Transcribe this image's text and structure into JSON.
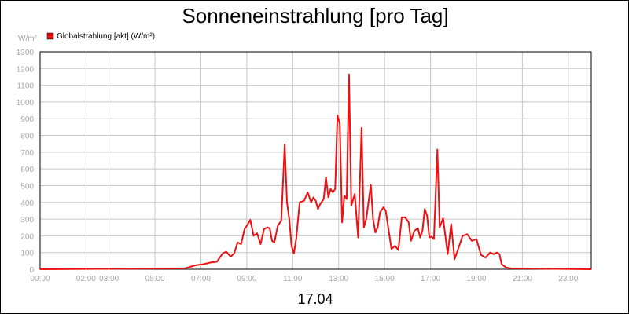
{
  "chart_data": {
    "type": "line",
    "title": "Sonneneinstrahlung [pro Tag]",
    "y_unit": "W/m²",
    "xlabel": "17.04",
    "legend": {
      "position": "top-left",
      "entries": [
        {
          "name": "Globalstrahlung [akt] (W/m²)",
          "color": "#ee1111"
        }
      ]
    },
    "grid": true,
    "ylim": [
      0,
      1300
    ],
    "y_ticks": [
      0,
      100,
      200,
      300,
      400,
      500,
      600,
      700,
      800,
      900,
      1000,
      1100,
      1200,
      1300
    ],
    "xlim": [
      0,
      24
    ],
    "x_tick_positions": [
      0,
      2,
      3,
      5,
      7,
      9,
      11,
      13,
      15,
      17,
      19,
      21,
      23
    ],
    "x_tick_labels": [
      "00:00",
      "02:00",
      "03:00",
      "05:00",
      "07:00",
      "09:00",
      "11:00",
      "13:00",
      "15:00",
      "17:00",
      "19:00",
      "21:00",
      "23:00"
    ],
    "series": [
      {
        "name": "Globalstrahlung [akt] (W/m²)",
        "color": "#ee1111",
        "x": [
          0,
          6.3,
          6.8,
          7.1,
          7.4,
          7.7,
          7.95,
          8.1,
          8.3,
          8.45,
          8.6,
          8.75,
          8.9,
          9.0,
          9.15,
          9.3,
          9.45,
          9.6,
          9.75,
          9.9,
          10.0,
          10.1,
          10.2,
          10.35,
          10.5,
          10.65,
          10.75,
          10.85,
          10.95,
          11.05,
          11.15,
          11.3,
          11.5,
          11.65,
          11.8,
          11.9,
          12.0,
          12.1,
          12.2,
          12.35,
          12.45,
          12.55,
          12.65,
          12.75,
          12.85,
          12.95,
          13.05,
          13.15,
          13.25,
          13.35,
          13.45,
          13.55,
          13.7,
          13.85,
          14.0,
          14.1,
          14.2,
          14.4,
          14.5,
          14.6,
          14.7,
          14.8,
          14.95,
          15.05,
          15.3,
          15.45,
          15.6,
          15.75,
          15.9,
          16.05,
          16.15,
          16.3,
          16.45,
          16.55,
          16.65,
          16.75,
          16.85,
          16.95,
          17.05,
          17.15,
          17.3,
          17.4,
          17.55,
          17.75,
          17.9,
          18.05,
          18.25,
          18.4,
          18.6,
          18.8,
          19.0,
          19.2,
          19.4,
          19.6,
          19.75,
          19.9,
          20.0,
          20.1,
          20.3,
          20.5,
          24
        ],
        "y": [
          0,
          5,
          25,
          30,
          40,
          45,
          95,
          105,
          75,
          95,
          160,
          150,
          240,
          260,
          295,
          200,
          215,
          150,
          240,
          250,
          245,
          170,
          160,
          260,
          290,
          745,
          400,
          300,
          140,
          95,
          180,
          400,
          410,
          460,
          400,
          430,
          410,
          360,
          390,
          420,
          550,
          430,
          480,
          460,
          480,
          920,
          870,
          280,
          440,
          420,
          1165,
          380,
          450,
          190,
          845,
          250,
          300,
          505,
          300,
          220,
          250,
          340,
          370,
          350,
          120,
          140,
          115,
          310,
          310,
          280,
          170,
          230,
          245,
          190,
          230,
          360,
          320,
          190,
          195,
          180,
          715,
          250,
          305,
          90,
          270,
          60,
          140,
          200,
          210,
          170,
          180,
          85,
          70,
          100,
          90,
          100,
          90,
          30,
          10,
          5,
          0
        ]
      }
    ]
  }
}
